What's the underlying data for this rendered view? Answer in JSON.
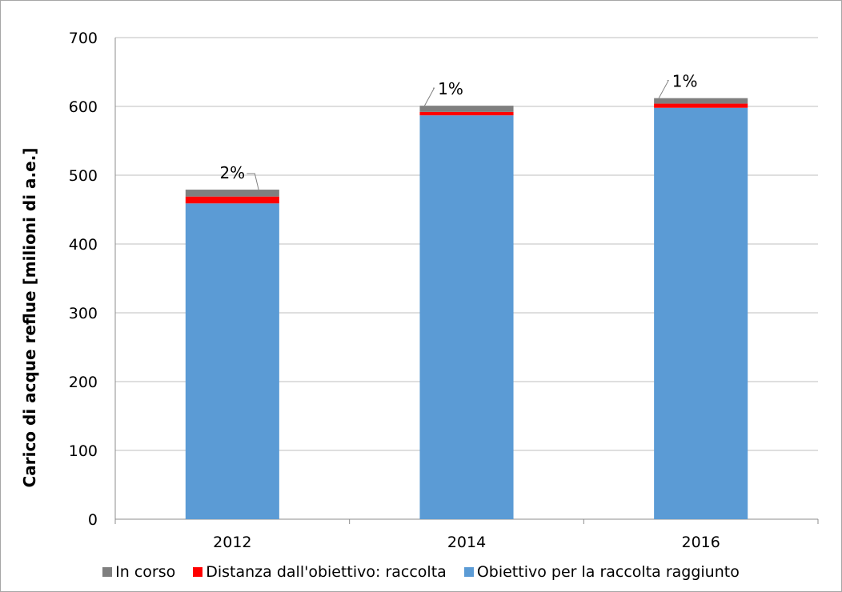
{
  "chart_data": {
    "type": "bar",
    "stacked": true,
    "categories": [
      "2012",
      "2014",
      "2016"
    ],
    "series": [
      {
        "name": "Obiettivo per la raccolta raggiunto",
        "color": "#5b9bd5",
        "values": [
          459,
          587,
          598
        ]
      },
      {
        "name": "Distanza dall'obiettivo: raccolta",
        "color": "#ff0000",
        "values": [
          10,
          5,
          6
        ]
      },
      {
        "name": "In corso",
        "color": "#7f7f7f",
        "values": [
          10,
          9,
          8
        ]
      }
    ],
    "data_labels": [
      "2%",
      "1%",
      "1%"
    ],
    "title": "",
    "xlabel": "",
    "ylabel": "Carico di acque reflue [milioni di a.e.]",
    "ylim": [
      0,
      700
    ],
    "yticks": [
      "0",
      "100",
      "200",
      "300",
      "400",
      "500",
      "600",
      "700"
    ],
    "grid": true,
    "legend_position": "bottom"
  },
  "legend": {
    "items": [
      {
        "label": "In corso",
        "color": "#7f7f7f"
      },
      {
        "label": "Distanza dall'obiettivo: raccolta",
        "color": "#ff0000"
      },
      {
        "label": "Obiettivo per la raccolta raggiunto",
        "color": "#5b9bd5"
      }
    ]
  }
}
